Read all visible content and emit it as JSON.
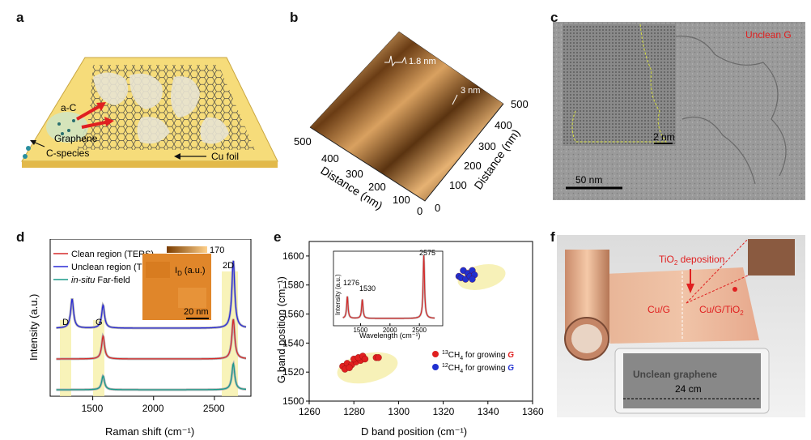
{
  "panels": {
    "a": {
      "letter": "a",
      "labels": {
        "ac": "a-C",
        "graphene": "Graphene",
        "cspecies": "C-species",
        "cufoil": "Cu foil"
      }
    },
    "b": {
      "letter": "b",
      "annotations": {
        "step1": "1.8 nm",
        "step2": "3 nm"
      },
      "left_axis": {
        "title": "Distance (nm)",
        "ticks": [
          "500",
          "400",
          "300",
          "200",
          "100",
          "0"
        ]
      },
      "right_axis": {
        "title": "Distance (nm)",
        "ticks": [
          "0",
          "100",
          "200",
          "300",
          "400",
          "500"
        ]
      }
    },
    "c": {
      "letter": "c",
      "labels": {
        "unclean": "Unclean G",
        "scale_small": "2 nm",
        "scale_large": "50 nm"
      }
    },
    "d": {
      "letter": "d",
      "legend": [
        "Clean region (TERS)",
        "Unclean region (TERS)",
        "in-situ Far-field"
      ],
      "legend_italic": "in-situ",
      "legend_rest": " Far-field",
      "inset": {
        "colorbar_max": "170",
        "label": "I",
        "label_sub": "D",
        "label_unit": " (a.u.)",
        "scale": "20 nm"
      },
      "peak_labels": {
        "d": "D",
        "g": "G",
        "twod": "2D"
      },
      "xlabel": "Raman shift (cm⁻¹)",
      "ylabel": "Intensity (a.u.)",
      "xticks": [
        "1500",
        "2000",
        "2500"
      ]
    },
    "e": {
      "letter": "e",
      "xlabel": "D band position (cm⁻¹)",
      "ylabel": "G band position (cm⁻¹)",
      "xticks": [
        "1260",
        "1280",
        "1300",
        "1320",
        "1340",
        "1360"
      ],
      "yticks": [
        "1500",
        "1520",
        "1540",
        "1560",
        "1580",
        "1600"
      ],
      "inset": {
        "xlabel": "Wavelength (cm⁻¹)",
        "ylabel": "Intensity (a.u.)",
        "xticks": [
          "1500",
          "2000",
          "2500"
        ],
        "peak_labels": [
          "1276",
          "1530",
          "2575"
        ]
      },
      "legend": [
        {
          "pre": "13",
          "mid": "CH",
          "sub": "4",
          "text": " for growing ",
          "g": "G",
          "color": "#e02020"
        },
        {
          "pre": "12",
          "mid": "CH",
          "sub": "4",
          "text": " for growing ",
          "g": "G",
          "color": "#2030d0"
        }
      ]
    },
    "f": {
      "letter": "f",
      "labels": {
        "deposition": "TiO",
        "deposition_sub": "2",
        "deposition_rest": " deposition",
        "cug": "Cu/G",
        "cugtio": "Cu/G/TiO",
        "cugtio_sub": "2",
        "tablet_text": "Unclean graphene",
        "size": "24 cm"
      }
    }
  },
  "chart_data": [
    {
      "type": "line",
      "panel": "d",
      "xlabel": "Raman shift (cm⁻¹)",
      "ylabel": "Intensity (a.u.)",
      "xlim": [
        1150,
        2800
      ],
      "series": [
        {
          "name": "Unclean region (TERS)",
          "color": "#2b2bd6",
          "offset": 2,
          "peaks": [
            [
              1330,
              0.95
            ],
            [
              1585,
              0.75
            ],
            [
              2655,
              2.2
            ]
          ]
        },
        {
          "name": "Clean region (TERS)",
          "color": "#d62b2b",
          "offset": 1,
          "peaks": [
            [
              1585,
              0.75
            ],
            [
              2655,
              1.3
            ]
          ]
        },
        {
          "name": "in-situ Far-field",
          "color": "#1a9a8a",
          "offset": 0,
          "peaks": [
            [
              1585,
              0.45
            ],
            [
              2655,
              0.85
            ]
          ]
        }
      ]
    },
    {
      "type": "scatter",
      "panel": "e",
      "xlabel": "D band position (cm⁻¹)",
      "ylabel": "G band position (cm⁻¹)",
      "xlim": [
        1260,
        1360
      ],
      "ylim": [
        1500,
        1610
      ],
      "series": [
        {
          "name": "13CH4 for growing G",
          "color": "#e02020",
          "points": [
            [
              1275,
              1524
            ],
            [
              1277,
              1526
            ],
            [
              1279,
              1525
            ],
            [
              1281,
              1527
            ],
            [
              1283,
              1528
            ],
            [
              1276,
              1522
            ],
            [
              1278,
              1523
            ],
            [
              1280,
              1529
            ],
            [
              1282,
              1530
            ],
            [
              1284,
              1531
            ],
            [
              1285,
              1529
            ],
            [
              1290,
              1530
            ],
            [
              1291,
              1530
            ]
          ]
        },
        {
          "name": "12CH4 for growing G",
          "color": "#2030d0",
          "points": [
            [
              1327,
              1586
            ],
            [
              1329,
              1590
            ],
            [
              1331,
              1588
            ],
            [
              1333,
              1590
            ],
            [
              1328,
              1585
            ],
            [
              1330,
              1584
            ],
            [
              1332,
              1586
            ],
            [
              1334,
              1587
            ],
            [
              1333,
              1584
            ]
          ]
        }
      ]
    },
    {
      "type": "line",
      "panel": "e-inset",
      "xlabel": "Wavelength (cm⁻¹)",
      "ylabel": "Intensity (a.u.)",
      "xlim": [
        1150,
        2800
      ],
      "peaks": [
        [
          1276,
          0.35
        ],
        [
          1530,
          0.3
        ],
        [
          2575,
          1.0
        ]
      ]
    }
  ]
}
